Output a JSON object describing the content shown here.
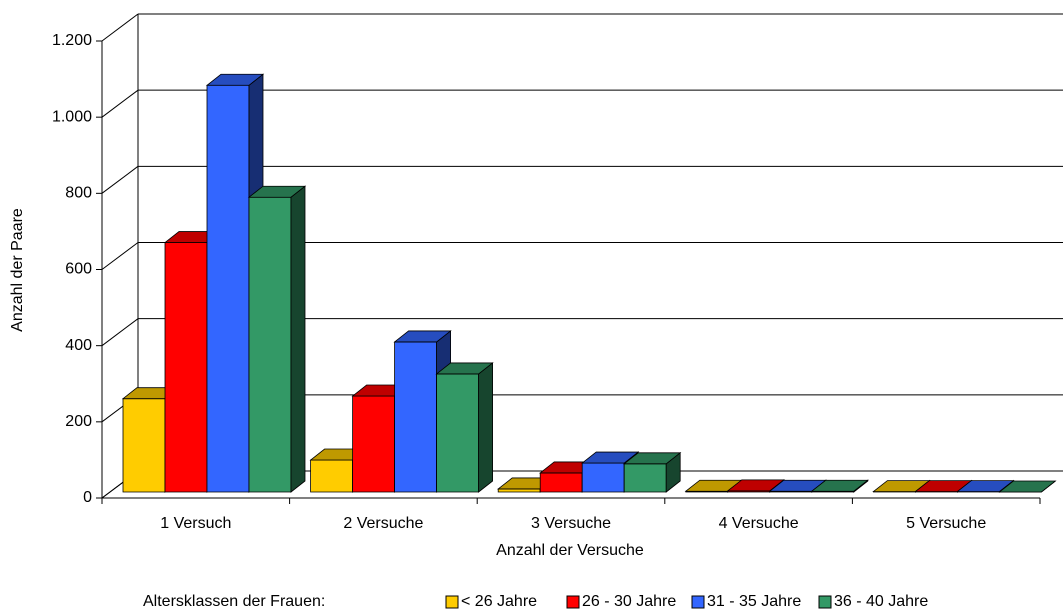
{
  "chart_data": {
    "type": "bar3d",
    "x_label": "Anzahl der Versuche",
    "y_label": "Anzahl der Paare",
    "legend_title": "Altersklassen der Frauen:",
    "categories": [
      "1 Versuch",
      "2 Versuche",
      "3 Versuche",
      "4 Versuche",
      "5 Versuche"
    ],
    "series": [
      {
        "name": "< 26 Jahre",
        "color": "#ffcc00",
        "values": [
          245,
          84,
          8,
          2,
          1
        ]
      },
      {
        "name": "26 - 30 Jahre",
        "color": "#ff0000",
        "values": [
          655,
          252,
          50,
          3,
          1
        ]
      },
      {
        "name": "31 - 35 Jahre",
        "color": "#3366ff",
        "values": [
          1068,
          394,
          76,
          2,
          1
        ]
      },
      {
        "name": "36 - 40 Jahre",
        "color": "#339966",
        "values": [
          774,
          310,
          74,
          2,
          0
        ]
      }
    ],
    "ylim": [
      0,
      1200
    ],
    "yticks": [
      0,
      200,
      400,
      600,
      800,
      {
        "value": 1000,
        "label": "1.000"
      },
      {
        "value": 1200,
        "label": "1.200"
      }
    ],
    "grid": true
  }
}
